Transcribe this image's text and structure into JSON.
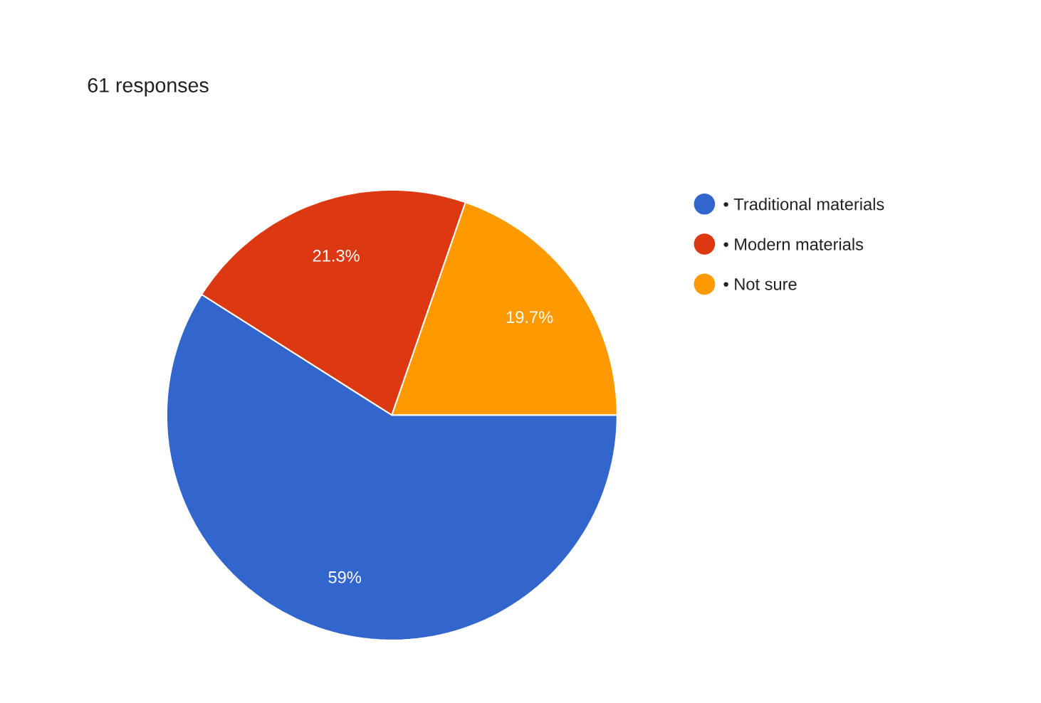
{
  "chart_data": {
    "type": "pie",
    "title": "61 responses",
    "categories": [
      "• Traditional materials",
      "• Modern materials",
      "• Not sure"
    ],
    "values": [
      59,
      21.3,
      19.7
    ],
    "value_labels": [
      "59%",
      "21.3%",
      "19.7%"
    ],
    "colors": [
      "#3366cc",
      "#dc3912",
      "#ff9900"
    ],
    "legend": "right"
  }
}
